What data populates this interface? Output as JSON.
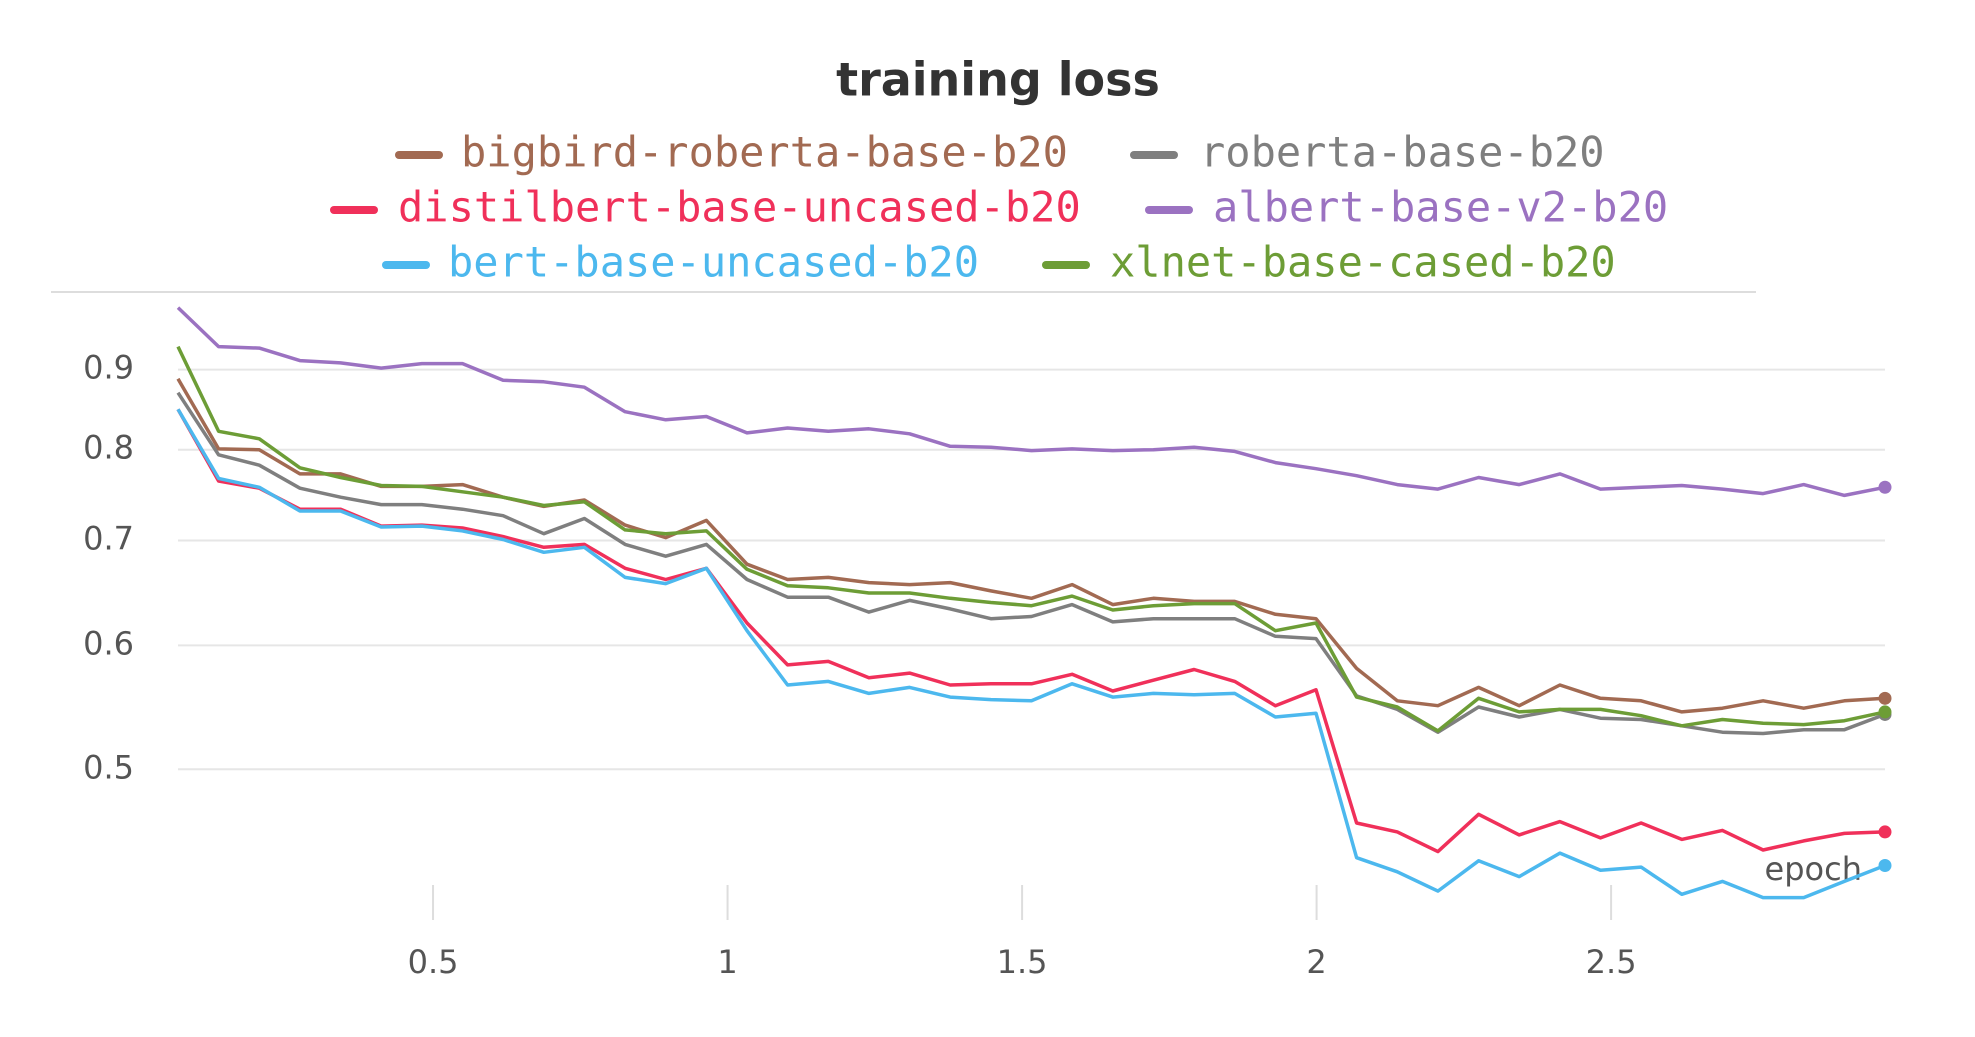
{
  "chart_data": {
    "type": "line",
    "title": "training loss",
    "x_label": "epoch",
    "x": [
      0.067,
      0.136,
      0.205,
      0.274,
      0.343,
      0.412,
      0.481,
      0.55,
      0.619,
      0.688,
      0.757,
      0.826,
      0.895,
      0.964,
      1.033,
      1.102,
      1.171,
      1.24,
      1.309,
      1.378,
      1.447,
      1.516,
      1.585,
      1.654,
      1.723,
      1.792,
      1.861,
      1.93,
      1.999,
      2.068,
      2.137,
      2.206,
      2.275,
      2.344,
      2.413,
      2.482,
      2.551,
      2.62,
      2.689,
      2.758,
      2.827,
      2.896,
      2.965
    ],
    "series": [
      {
        "name": "bigbird-roberta-base-b20",
        "color": "#a26a52",
        "values": [
          0.888,
          0.801,
          0.8,
          0.772,
          0.772,
          0.758,
          0.758,
          0.76,
          0.746,
          0.736,
          0.743,
          0.716,
          0.703,
          0.721,
          0.676,
          0.661,
          0.663,
          0.658,
          0.656,
          0.658,
          0.65,
          0.643,
          0.656,
          0.637,
          0.643,
          0.64,
          0.64,
          0.628,
          0.624,
          0.58,
          0.553,
          0.549,
          0.564,
          0.549,
          0.566,
          0.555,
          0.553,
          0.544,
          0.547,
          0.553,
          0.547,
          0.553,
          0.555
        ]
      },
      {
        "name": "roberta-base-b20",
        "color": "#7f7f7f",
        "values": [
          0.87,
          0.794,
          0.782,
          0.756,
          0.746,
          0.738,
          0.738,
          0.733,
          0.726,
          0.707,
          0.723,
          0.696,
          0.684,
          0.696,
          0.661,
          0.644,
          0.644,
          0.63,
          0.641,
          0.633,
          0.624,
          0.626,
          0.637,
          0.621,
          0.624,
          0.624,
          0.624,
          0.608,
          0.606,
          0.557,
          0.546,
          0.528,
          0.548,
          0.54,
          0.546,
          0.539,
          0.538,
          0.533,
          0.528,
          0.527,
          0.53,
          0.53,
          0.542
        ]
      },
      {
        "name": "distilbert-base-uncased-b20",
        "color": "#f0305a",
        "values": [
          0.849,
          0.764,
          0.756,
          0.733,
          0.733,
          0.715,
          0.716,
          0.713,
          0.704,
          0.693,
          0.696,
          0.672,
          0.661,
          0.672,
          0.62,
          0.583,
          0.586,
          0.572,
          0.576,
          0.566,
          0.567,
          0.567,
          0.575,
          0.561,
          0.57,
          0.579,
          0.569,
          0.549,
          0.562,
          0.462,
          0.456,
          0.443,
          0.468,
          0.454,
          0.463,
          0.452,
          0.462,
          0.451,
          0.457,
          0.444,
          0.45,
          0.455,
          0.456
        ]
      },
      {
        "name": "albert-base-v2-b20",
        "color": "#9b72c1",
        "values": [
          0.986,
          0.931,
          0.929,
          0.912,
          0.909,
          0.902,
          0.908,
          0.908,
          0.886,
          0.884,
          0.877,
          0.846,
          0.836,
          0.84,
          0.82,
          0.826,
          0.822,
          0.825,
          0.819,
          0.804,
          0.803,
          0.799,
          0.801,
          0.799,
          0.8,
          0.803,
          0.798,
          0.785,
          0.778,
          0.77,
          0.76,
          0.755,
          0.768,
          0.76,
          0.772,
          0.755,
          0.757,
          0.759,
          0.755,
          0.75,
          0.76,
          0.748,
          0.757
        ]
      },
      {
        "name": "bert-base-uncased-b20",
        "color": "#4cb8ee",
        "values": [
          0.849,
          0.767,
          0.757,
          0.731,
          0.731,
          0.714,
          0.715,
          0.71,
          0.701,
          0.688,
          0.693,
          0.663,
          0.657,
          0.672,
          0.613,
          0.566,
          0.569,
          0.559,
          0.564,
          0.556,
          0.554,
          0.553,
          0.567,
          0.556,
          0.559,
          0.558,
          0.559,
          0.54,
          0.543,
          0.439,
          0.43,
          0.418,
          0.437,
          0.427,
          0.442,
          0.431,
          0.433,
          0.416,
          0.424,
          0.414,
          0.414,
          0.424,
          0.434
        ]
      },
      {
        "name": "xlnet-base-cased-b20",
        "color": "#6d9d36",
        "values": [
          0.931,
          0.822,
          0.813,
          0.779,
          0.768,
          0.759,
          0.758,
          0.752,
          0.746,
          0.737,
          0.741,
          0.711,
          0.707,
          0.71,
          0.671,
          0.655,
          0.653,
          0.648,
          0.648,
          0.643,
          0.639,
          0.636,
          0.645,
          0.632,
          0.636,
          0.638,
          0.638,
          0.613,
          0.62,
          0.556,
          0.548,
          0.529,
          0.555,
          0.544,
          0.546,
          0.546,
          0.541,
          0.533,
          0.538,
          0.535,
          0.534,
          0.537,
          0.544
        ]
      }
    ],
    "xlim": [
      0.067,
      2.965
    ],
    "xticks": [
      0.5,
      1,
      1.5,
      2,
      2.5
    ],
    "ylim": [
      0.4,
      1.0
    ],
    "yticks": [
      0.5,
      0.6,
      0.7,
      0.8,
      0.9
    ],
    "ylog": true,
    "grid": true
  }
}
